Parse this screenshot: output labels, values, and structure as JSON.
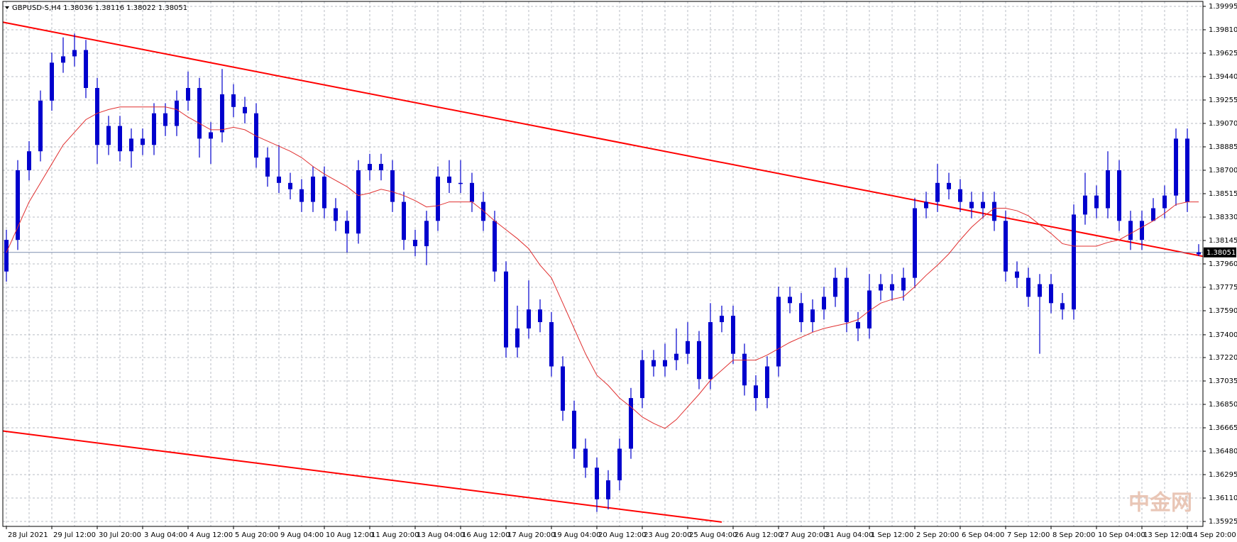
{
  "chart_data": {
    "type": "candlestick",
    "title": "GBPUSD-S,H4  1.38036 1.38116 1.38022 1.38051",
    "watermark": "中金网",
    "candle_color": "#0000cd",
    "ma_color": "#e03030",
    "trend_color": "#ff0000",
    "grid": true,
    "categories": [
      "28 Jul 2021",
      null,
      null,
      null,
      "29 Jul 12:00",
      null,
      null,
      null,
      "30 Jul 20:00",
      null,
      null,
      null,
      "3 Aug 04:00",
      null,
      null,
      null,
      "4 Aug 12:00",
      null,
      null,
      null,
      "5 Aug 20:00",
      null,
      null,
      null,
      "9 Aug 04:00",
      null,
      null,
      null,
      "10 Aug 12:00",
      null,
      null,
      null,
      "11 Aug 20:00",
      null,
      null,
      null,
      "13 Aug 04:00",
      null,
      null,
      null,
      "16 Aug 12:00",
      null,
      null,
      null,
      "17 Aug 20:00",
      null,
      null,
      null,
      "19 Aug 04:00",
      null,
      null,
      null,
      "20 Aug 12:00",
      null,
      null,
      null,
      "23 Aug 20:00",
      null,
      null,
      null,
      "25 Aug 04:00",
      null,
      null,
      null,
      "26 Aug 12:00",
      null,
      null,
      null,
      "27 Aug 20:00",
      null,
      null,
      null,
      "31 Aug 04:00",
      null,
      null,
      null,
      "1 Sep 12:00",
      null,
      null,
      null,
      "2 Sep 20:00",
      null,
      null,
      null,
      "6 Sep 04:00",
      null,
      null,
      null,
      "7 Sep 12:00",
      null,
      null,
      null,
      "8 Sep 20:00",
      null,
      null,
      null,
      "10 Sep 04:00",
      null,
      null,
      null,
      "13 Sep 12:00",
      null,
      null,
      null,
      "14 Sep 20:00",
      null
    ],
    "open": [
      1.379,
      1.3815,
      1.387,
      1.3885,
      1.3925,
      1.3955,
      1.396,
      1.3965,
      1.3935,
      1.389,
      1.3905,
      1.3885,
      1.3895,
      1.389,
      1.3915,
      1.3905,
      1.3925,
      1.3935,
      1.3895,
      1.39,
      1.393,
      1.392,
      1.3915,
      1.388,
      1.3865,
      1.386,
      1.3855,
      1.3845,
      1.3865,
      1.384,
      1.383,
      1.382,
      1.387,
      1.3875,
      1.387,
      1.3845,
      1.3815,
      1.381,
      1.383,
      1.3865,
      1.386,
      1.386,
      1.3845,
      1.383,
      1.379,
      1.373,
      1.3745,
      1.376,
      1.375,
      1.3715,
      1.368,
      1.365,
      1.3635,
      1.361,
      1.3625,
      1.365,
      1.369,
      1.372,
      1.3715,
      1.372,
      1.3725,
      1.3735,
      1.3705,
      1.375,
      1.3755,
      1.3725,
      1.37,
      1.369,
      1.3715,
      1.377,
      1.3765,
      1.375,
      1.376,
      1.377,
      1.3785,
      1.375,
      1.3745,
      1.3775,
      1.378,
      1.3775,
      1.3785,
      1.384,
      1.3845,
      1.386,
      1.3855,
      1.3845,
      1.384,
      1.3845,
      1.383,
      1.379,
      1.3785,
      1.377,
      1.378,
      1.3765,
      1.376,
      1.3835,
      1.385,
      1.384,
      1.387,
      1.383,
      1.3815,
      1.383,
      1.384,
      1.385,
      1.3895,
      1.38036
    ],
    "high": [
      1.3823,
      1.3878,
      1.3893,
      1.3933,
      1.3963,
      1.3975,
      1.3978,
      1.3973,
      1.3943,
      1.3913,
      1.3913,
      1.3903,
      1.3903,
      1.3923,
      1.3923,
      1.3933,
      1.3948,
      1.3943,
      1.3908,
      1.395,
      1.3938,
      1.3928,
      1.3923,
      1.3888,
      1.389,
      1.3868,
      1.3863,
      1.3873,
      1.3873,
      1.3848,
      1.3838,
      1.3878,
      1.3883,
      1.3883,
      1.3878,
      1.3853,
      1.3823,
      1.3838,
      1.3873,
      1.3878,
      1.3878,
      1.3868,
      1.3853,
      1.3838,
      1.3798,
      1.3763,
      1.3783,
      1.3768,
      1.3758,
      1.3723,
      1.3688,
      1.3658,
      1.3643,
      1.3633,
      1.3658,
      1.3698,
      1.3728,
      1.3728,
      1.3733,
      1.3745,
      1.375,
      1.3743,
      1.3765,
      1.3763,
      1.3763,
      1.3733,
      1.3708,
      1.3723,
      1.3778,
      1.3778,
      1.3773,
      1.3768,
      1.3778,
      1.3793,
      1.3793,
      1.3758,
      1.3788,
      1.3788,
      1.3788,
      1.3793,
      1.3848,
      1.3853,
      1.3875,
      1.3868,
      1.3863,
      1.3853,
      1.3853,
      1.3853,
      1.3838,
      1.3798,
      1.3793,
      1.3788,
      1.3788,
      1.3773,
      1.3843,
      1.3868,
      1.3858,
      1.3885,
      1.3878,
      1.3838,
      1.3838,
      1.3848,
      1.3858,
      1.3903,
      1.3903,
      1.38116
    ],
    "low": [
      1.3782,
      1.3807,
      1.3862,
      1.3877,
      1.3917,
      1.3947,
      1.3952,
      1.3927,
      1.3875,
      1.3882,
      1.3877,
      1.3872,
      1.3882,
      1.3882,
      1.3897,
      1.3897,
      1.3917,
      1.388,
      1.3875,
      1.3892,
      1.3912,
      1.3907,
      1.3872,
      1.3857,
      1.3852,
      1.3847,
      1.3837,
      1.3837,
      1.3832,
      1.3822,
      1.3805,
      1.3812,
      1.3862,
      1.3862,
      1.3837,
      1.3807,
      1.3802,
      1.3795,
      1.3822,
      1.3852,
      1.3852,
      1.3837,
      1.3822,
      1.3782,
      1.3722,
      1.3722,
      1.3737,
      1.3742,
      1.3707,
      1.3672,
      1.3642,
      1.3627,
      1.36,
      1.3602,
      1.3617,
      1.3642,
      1.3682,
      1.3707,
      1.3707,
      1.3712,
      1.3717,
      1.3697,
      1.3697,
      1.3742,
      1.3717,
      1.3692,
      1.368,
      1.3682,
      1.3707,
      1.3757,
      1.3742,
      1.3742,
      1.3752,
      1.3762,
      1.3742,
      1.3735,
      1.3737,
      1.3767,
      1.3767,
      1.3767,
      1.3777,
      1.3832,
      1.3837,
      1.3847,
      1.3837,
      1.3832,
      1.3832,
      1.3822,
      1.3782,
      1.3777,
      1.3762,
      1.3725,
      1.3757,
      1.3752,
      1.3752,
      1.3827,
      1.3832,
      1.3832,
      1.3822,
      1.3807,
      1.3807,
      1.3832,
      1.3832,
      1.3842,
      1.3837,
      1.38022
    ],
    "close": [
      1.3815,
      1.387,
      1.3885,
      1.3925,
      1.3955,
      1.396,
      1.3965,
      1.3935,
      1.389,
      1.3905,
      1.3885,
      1.3895,
      1.389,
      1.3915,
      1.3905,
      1.3925,
      1.3935,
      1.3895,
      1.39,
      1.393,
      1.392,
      1.3915,
      1.388,
      1.3865,
      1.386,
      1.3855,
      1.3845,
      1.3865,
      1.384,
      1.383,
      1.382,
      1.387,
      1.3875,
      1.387,
      1.3845,
      1.3815,
      1.381,
      1.383,
      1.3865,
      1.386,
      1.386,
      1.3845,
      1.383,
      1.379,
      1.373,
      1.3745,
      1.376,
      1.375,
      1.3715,
      1.368,
      1.365,
      1.3635,
      1.361,
      1.3625,
      1.365,
      1.369,
      1.372,
      1.3715,
      1.372,
      1.3725,
      1.3735,
      1.3705,
      1.375,
      1.3755,
      1.3725,
      1.37,
      1.369,
      1.3715,
      1.377,
      1.3765,
      1.375,
      1.376,
      1.377,
      1.3785,
      1.375,
      1.3745,
      1.3775,
      1.378,
      1.3775,
      1.3785,
      1.384,
      1.3845,
      1.386,
      1.3855,
      1.3845,
      1.384,
      1.3845,
      1.383,
      1.379,
      1.3785,
      1.377,
      1.378,
      1.3765,
      1.376,
      1.3835,
      1.385,
      1.384,
      1.387,
      1.383,
      1.3815,
      1.383,
      1.384,
      1.385,
      1.3895,
      1.3845,
      1.38051
    ],
    "ma": [
      1.3805,
      1.3825,
      1.3845,
      1.386,
      1.3875,
      1.389,
      1.39,
      1.391,
      1.3915,
      1.3918,
      1.392,
      1.392,
      1.392,
      1.392,
      1.392,
      1.3918,
      1.3912,
      1.3907,
      1.3902,
      1.3902,
      1.3904,
      1.3902,
      1.3897,
      1.3893,
      1.3889,
      1.3885,
      1.388,
      1.3873,
      1.3867,
      1.3862,
      1.3857,
      1.385,
      1.3852,
      1.3855,
      1.3853,
      1.385,
      1.3846,
      1.3841,
      1.3842,
      1.3845,
      1.3845,
      1.3845,
      1.3838,
      1.383,
      1.3823,
      1.3816,
      1.3808,
      1.3795,
      1.3785,
      1.3765,
      1.3745,
      1.3725,
      1.3708,
      1.37,
      1.369,
      1.3683,
      1.3675,
      1.367,
      1.3666,
      1.3673,
      1.3683,
      1.3693,
      1.3704,
      1.3712,
      1.372,
      1.372,
      1.372,
      1.3724,
      1.3729,
      1.3734,
      1.3738,
      1.3742,
      1.3745,
      1.3747,
      1.3749,
      1.3752,
      1.3759,
      1.3765,
      1.3768,
      1.377,
      1.3778,
      1.3787,
      1.3795,
      1.3804,
      1.3815,
      1.3825,
      1.3833,
      1.384,
      1.384,
      1.3838,
      1.3834,
      1.3827,
      1.382,
      1.3812,
      1.381,
      1.381,
      1.381,
      1.3813,
      1.3815,
      1.382,
      1.3825,
      1.383,
      1.3836,
      1.3843,
      1.3845,
      1.3845
    ],
    "trend_lines": [
      {
        "values": [
          1.3987,
          1.3802
        ]
      },
      {
        "values": [
          1.3664,
          1.3592
        ]
      }
    ],
    "current_price": 1.38051,
    "ylim": [
      1.35886,
      1.40034
    ],
    "yticks": [
      1.39995,
      {
        "value": 1.3981,
        "label": "1.39810"
      },
      1.39625,
      {
        "value": 1.3944,
        "label": "1.39440"
      },
      1.39255,
      {
        "value": 1.3907,
        "label": "1.39070"
      },
      1.38885,
      {
        "value": 1.387,
        "label": "1.38700"
      },
      1.38515,
      {
        "value": 1.3833,
        "label": "1.38330"
      },
      1.38145,
      {
        "value": 1.3796,
        "label": "1.37960"
      },
      1.37775,
      {
        "value": 1.3759,
        "label": "1.37590"
      },
      {
        "value": 1.374,
        "label": "1.37400"
      },
      {
        "value": 1.3722,
        "label": "1.37220"
      },
      1.37035,
      {
        "value": 1.3685,
        "label": "1.36850"
      },
      1.36665,
      {
        "value": 1.3648,
        "label": "1.36480"
      },
      1.36295,
      {
        "value": 1.3611,
        "label": "1.36110"
      },
      1.35925
    ]
  }
}
